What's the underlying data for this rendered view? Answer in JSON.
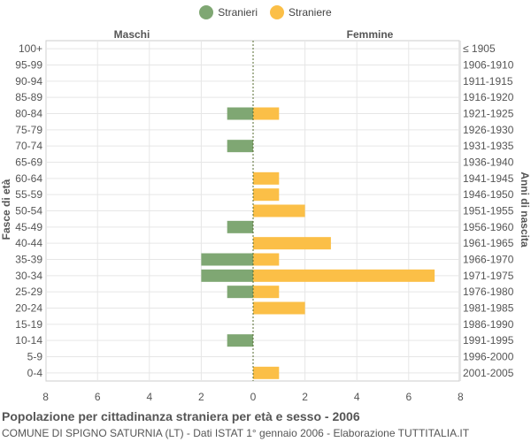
{
  "chart_data": {
    "type": "bar",
    "orientation": "horizontal-population-pyramid",
    "legend": [
      {
        "label": "Stranieri",
        "color": "#7fa773"
      },
      {
        "label": "Straniere",
        "color": "#fbbf47"
      }
    ],
    "legend_position": "top-center",
    "left_header": "Maschi",
    "right_header": "Femmine",
    "ylabel_left": "Fasce di età",
    "ylabel_right": "Anni di nascita",
    "age_groups": [
      "100+",
      "95-99",
      "90-94",
      "85-89",
      "80-84",
      "75-79",
      "70-74",
      "65-69",
      "60-64",
      "55-59",
      "50-54",
      "45-49",
      "40-44",
      "35-39",
      "30-34",
      "25-29",
      "20-24",
      "15-19",
      "10-14",
      "5-9",
      "0-4"
    ],
    "birth_years": [
      "≤ 1905",
      "1906-1910",
      "1911-1915",
      "1916-1920",
      "1921-1925",
      "1926-1930",
      "1931-1935",
      "1936-1940",
      "1941-1945",
      "1946-1950",
      "1951-1955",
      "1956-1960",
      "1961-1965",
      "1966-1970",
      "1971-1975",
      "1976-1980",
      "1981-1985",
      "1986-1990",
      "1991-1995",
      "1996-2000",
      "2001-2005"
    ],
    "series": [
      {
        "name": "Stranieri",
        "values": [
          0,
          0,
          0,
          0,
          1,
          0,
          1,
          0,
          0,
          0,
          0,
          1,
          0,
          2,
          2,
          1,
          0,
          0,
          1,
          0,
          0
        ]
      },
      {
        "name": "Straniere",
        "values": [
          0,
          0,
          0,
          0,
          1,
          0,
          0,
          0,
          1,
          1,
          2,
          0,
          3,
          1,
          7,
          1,
          2,
          0,
          0,
          0,
          1
        ]
      }
    ],
    "x_ticks": [
      "8",
      "6",
      "4",
      "2",
      "0",
      "2",
      "4",
      "6",
      "8"
    ],
    "xlim": [
      -8,
      8
    ],
    "grid": true,
    "title": "Popolazione per cittadinanza straniera per età e sesso - 2006",
    "subtitle": "COMUNE DI SPIGNO SATURNIA (LT) - Dati ISTAT 1° gennaio 2006 - Elaborazione TUTTITALIA.IT"
  }
}
